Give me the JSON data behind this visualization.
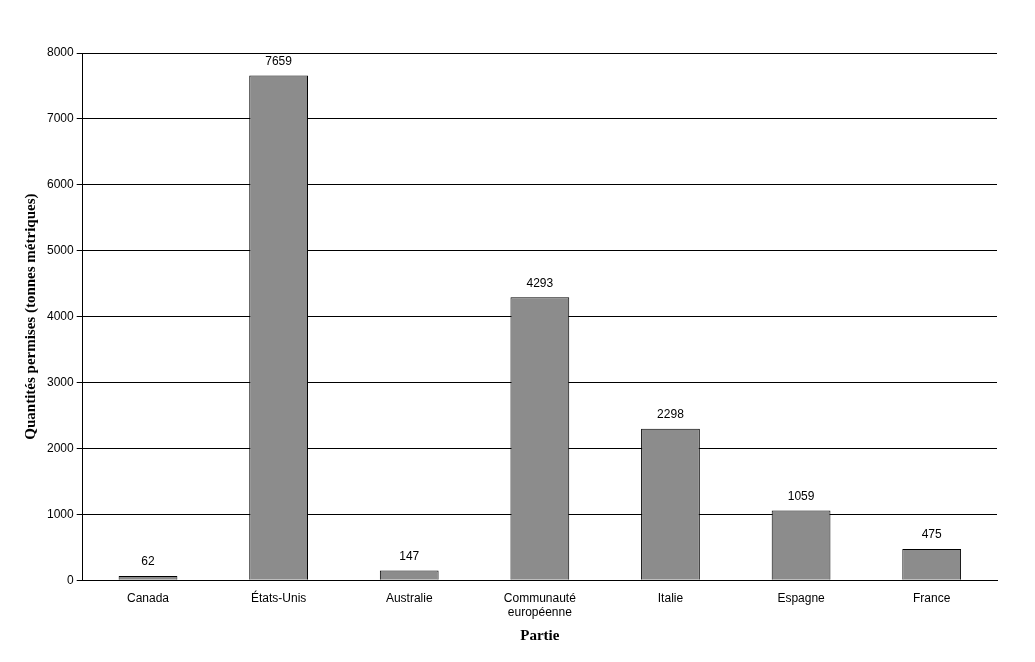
{
  "chart_data": {
    "type": "bar",
    "xlabel": "Partie",
    "ylabel": "Quantités permises (tonnes métriques)",
    "categories": [
      "Canada",
      "États-Unis",
      "Australie",
      "Communauté européenne",
      "Italie",
      "Espagne",
      "France"
    ],
    "values": [
      62,
      7659,
      147,
      4293,
      2298,
      1059,
      475
    ],
    "color": "#8c8c8c",
    "ylim": [
      0,
      8000
    ],
    "yticks": [
      0,
      1000,
      2000,
      3000,
      4000,
      5000,
      6000,
      7000,
      8000
    ],
    "grid": "y",
    "data_labels": true
  }
}
